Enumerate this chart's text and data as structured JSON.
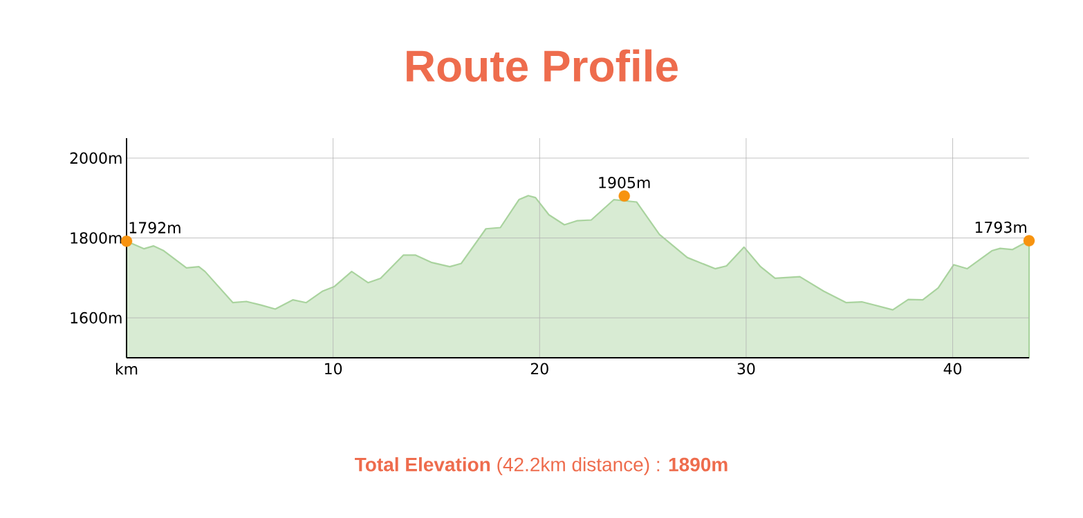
{
  "chart_data": {
    "type": "area",
    "title": "Route Profile",
    "annotations": [
      "**Total Elevation** (42.2km distance) : **1890m**"
    ],
    "x": [
      0,
      0.85,
      1.3,
      1.8,
      2.9,
      3.5,
      3.8,
      5.15,
      5.8,
      6.5,
      7.2,
      8.05,
      8.7,
      9.5,
      10.05,
      10.9,
      11.7,
      12.3,
      13.4,
      14.0,
      14.75,
      15.65,
      16.2,
      17.4,
      18.1,
      19.0,
      19.45,
      19.8,
      20.45,
      21.2,
      21.8,
      22.5,
      23.6,
      24.7,
      25.8,
      27.15,
      28.5,
      29.05,
      29.9,
      30.7,
      31.4,
      32.6,
      33.75,
      34.85,
      35.6,
      37.1,
      37.85,
      38.55,
      39.3,
      40.05,
      40.7,
      41.9,
      42.3,
      42.9,
      43.7
    ],
    "series": [
      {
        "type": "area",
        "color": "#a9d39e",
        "values": [
          1792,
          1773,
          1780,
          1768,
          1725,
          1728,
          1716,
          1638,
          1641,
          1632,
          1622,
          1645,
          1638,
          1667,
          1678,
          1716,
          1688,
          1699,
          1757,
          1757,
          1739,
          1728,
          1736,
          1823,
          1826,
          1896,
          1906,
          1901,
          1858,
          1833,
          1843,
          1845,
          1896,
          1890,
          1809,
          1751,
          1723,
          1730,
          1777,
          1728,
          1699,
          1703,
          1667,
          1638,
          1640,
          1620,
          1646,
          1645,
          1675,
          1733,
          1723,
          1768,
          1774,
          1771,
          1793
        ]
      },
      {
        "type": "scatter",
        "color": "#f7930f",
        "marker": "circle",
        "x": [
          0,
          24.1,
          43.7
        ],
        "values": [
          1792,
          1905,
          1793
        ],
        "value_labels": [
          "1792m",
          "1905m",
          "1793m"
        ]
      }
    ],
    "xlim": [
      0,
      43.7
    ],
    "ylim": [
      1500,
      2050
    ],
    "xticks": [
      {
        "value": 0,
        "label": "km"
      },
      10,
      20,
      30,
      40
    ],
    "yticks": [
      {
        "value": 1600,
        "label": "1600m"
      },
      {
        "value": 1800,
        "label": "1800m"
      },
      {
        "value": 2000,
        "label": "2000m"
      }
    ],
    "grid": true
  }
}
